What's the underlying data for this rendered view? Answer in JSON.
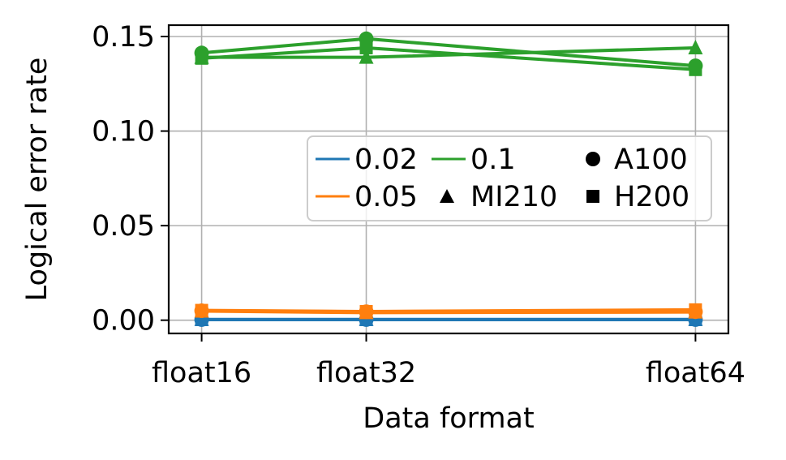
{
  "chart_data": {
    "type": "line",
    "xlabel": "Data format",
    "ylabel": "Logical error rate",
    "categories": [
      "float16",
      "float32",
      "float64"
    ],
    "x": [
      16,
      32,
      64
    ],
    "ylim": [
      -0.007,
      0.156
    ],
    "yticks": [
      0.0,
      0.05,
      0.1,
      0.15
    ],
    "ytick_labels": [
      "0.00",
      "0.05",
      "0.10",
      "0.15"
    ],
    "grid": true,
    "legend_position": "center-right",
    "legend_entries": {
      "rates": [
        {
          "label": "0.02",
          "color": "#1f77b4"
        },
        {
          "label": "0.05",
          "color": "#ff7f0e"
        },
        {
          "label": "0.1",
          "color": "#2ca02c"
        }
      ],
      "devices": [
        {
          "label": "A100",
          "marker": "circle"
        },
        {
          "label": "MI210",
          "marker": "triangle"
        },
        {
          "label": "H200",
          "marker": "square"
        }
      ]
    },
    "series": [
      {
        "rate": "0.02",
        "device": "A100",
        "color": "#1f77b4",
        "marker": "circle",
        "values": [
          0.0003,
          0.0003,
          0.0003
        ]
      },
      {
        "rate": "0.02",
        "device": "MI210",
        "color": "#1f77b4",
        "marker": "triangle",
        "values": [
          0.0004,
          0.0004,
          0.0004
        ]
      },
      {
        "rate": "0.02",
        "device": "H200",
        "color": "#1f77b4",
        "marker": "square",
        "values": [
          0.0003,
          0.0003,
          0.0003
        ]
      },
      {
        "rate": "0.05",
        "device": "A100",
        "color": "#ff7f0e",
        "marker": "circle",
        "values": [
          0.005,
          0.0045,
          0.0045
        ]
      },
      {
        "rate": "0.05",
        "device": "MI210",
        "color": "#ff7f0e",
        "marker": "triangle",
        "values": [
          0.0048,
          0.004,
          0.0043
        ]
      },
      {
        "rate": "0.05",
        "device": "H200",
        "color": "#ff7f0e",
        "marker": "square",
        "values": [
          0.0052,
          0.0046,
          0.0055
        ]
      },
      {
        "rate": "0.1",
        "device": "A100",
        "color": "#2ca02c",
        "marker": "circle",
        "values": [
          0.1413,
          0.1488,
          0.1345
        ]
      },
      {
        "rate": "0.1",
        "device": "MI210",
        "color": "#2ca02c",
        "marker": "triangle",
        "values": [
          0.139,
          0.139,
          0.144
        ]
      },
      {
        "rate": "0.1",
        "device": "H200",
        "color": "#2ca02c",
        "marker": "square",
        "values": [
          0.1385,
          0.144,
          0.1325
        ]
      }
    ]
  }
}
